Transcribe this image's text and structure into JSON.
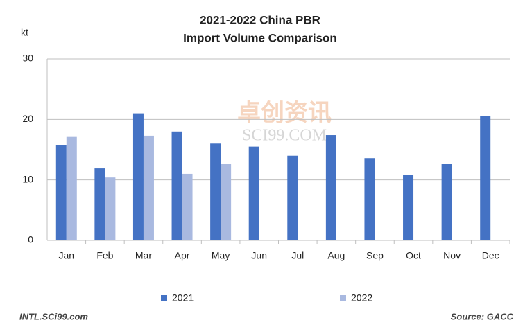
{
  "chart_data": {
    "type": "bar",
    "title": "2021-2022  China PBR",
    "subtitle": "Import Volume Comparison",
    "y_label": "kt",
    "categories": [
      "Jan",
      "Feb",
      "Mar",
      "Apr",
      "May",
      "Jun",
      "Jul",
      "Aug",
      "Sep",
      "Oct",
      "Nov",
      "Dec"
    ],
    "series": [
      {
        "name": "2021",
        "color": "#4472c4",
        "values": [
          15.8,
          11.9,
          21.0,
          18.0,
          16.0,
          15.5,
          14.0,
          17.4,
          13.6,
          10.8,
          12.6,
          20.6
        ]
      },
      {
        "name": "2022",
        "color": "#a9b9e0",
        "values": [
          17.1,
          10.4,
          17.3,
          11.0,
          12.6,
          null,
          null,
          null,
          null,
          null,
          null,
          null
        ]
      }
    ],
    "ylim": [
      0,
      30
    ],
    "yticks": [
      0,
      10,
      20,
      30
    ],
    "grid": true,
    "legend": "bottom",
    "watermark": "卓创资讯",
    "watermark_sub": "SCI99.COM",
    "footer_left": "INTL.SCi99.com",
    "footer_right": "Source: GACC"
  }
}
